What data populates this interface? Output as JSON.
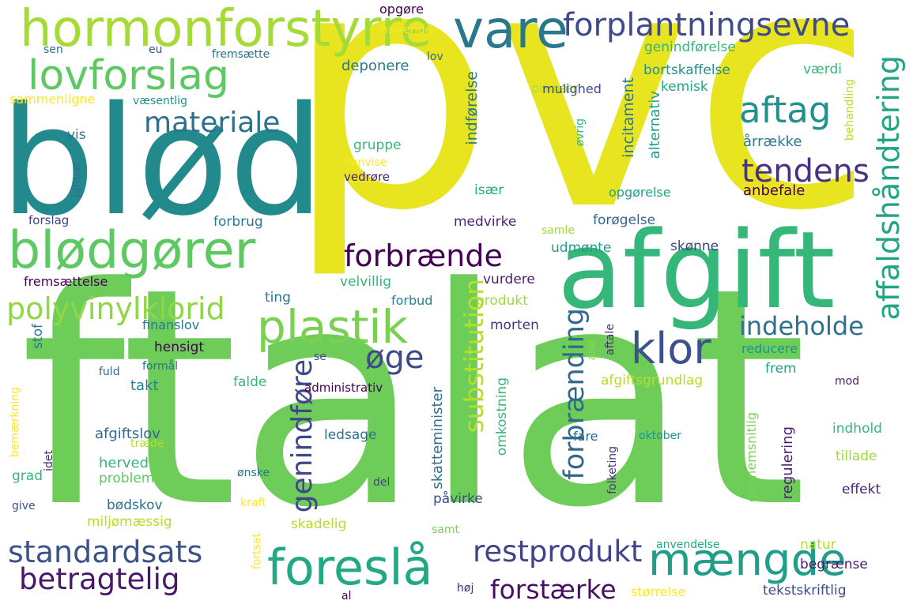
{
  "palette": {
    "yellow": "#e8e41f",
    "lime": "#a0d93e",
    "green": "#62c95e",
    "emerald": "#2db37a",
    "teal": "#24938a",
    "blue": "#2f6f8e",
    "indigo": "#3a528b",
    "purple": "#481f70",
    "dark": "#440154"
  },
  "words": [
    {
      "text": "pvc",
      "color": "#e8e41f"
    },
    {
      "text": "ftalat",
      "color": "#6ecd59"
    },
    {
      "text": "blød",
      "color": "#22898c"
    },
    {
      "text": "afgift",
      "color": "#35b779"
    },
    {
      "text": "hormonforstyrre",
      "color": "#a5db36"
    },
    {
      "text": "vare",
      "color": "#2a788e"
    },
    {
      "text": "forplantningsevne",
      "color": "#3e4a89"
    },
    {
      "text": "lovforslag",
      "color": "#5ec962"
    },
    {
      "text": "blødgører",
      "color": "#5ec962"
    },
    {
      "text": "materiale",
      "color": "#2c728e"
    },
    {
      "text": "aftag",
      "color": "#21918c"
    },
    {
      "text": "affaldshåndtering",
      "color": "#21a585"
    },
    {
      "text": "tendens",
      "color": "#46327e"
    },
    {
      "text": "forbrænde",
      "color": "#440154"
    },
    {
      "text": "polyvinylklorid",
      "color": "#8fd744"
    },
    {
      "text": "plastik",
      "color": "#7ad151"
    },
    {
      "text": "klor",
      "color": "#3b528b"
    },
    {
      "text": "indeholde",
      "color": "#2c728e"
    },
    {
      "text": "øge",
      "color": "#3e4a89"
    },
    {
      "text": "genindføre",
      "color": "#404688"
    },
    {
      "text": "substitution",
      "color": "#b5de2b"
    },
    {
      "text": "forbrænding",
      "color": "#31688e"
    },
    {
      "text": "standardsats",
      "color": "#3b528b"
    },
    {
      "text": "betragtelig",
      "color": "#48186a"
    },
    {
      "text": "foreslå",
      "color": "#22a884"
    },
    {
      "text": "mængde",
      "color": "#1f9e89"
    },
    {
      "text": "restprodukt",
      "color": "#414487"
    },
    {
      "text": "forstærke",
      "color": "#471063"
    },
    {
      "text": "sammenligne",
      "color": "#fde725"
    },
    {
      "text": "væsentlig",
      "color": "#21918c"
    },
    {
      "text": "sen",
      "color": "#2c728e"
    },
    {
      "text": "eu",
      "color": "#3b528b"
    },
    {
      "text": "fremsætte",
      "color": "#2c728e"
    },
    {
      "text": "lov",
      "color": "#31688e"
    },
    {
      "text": "opgøre",
      "color": "#440154"
    },
    {
      "text": "anvende",
      "color": "#fde725"
    },
    {
      "text": "deponere",
      "color": "#2a788e"
    },
    {
      "text": "genindførelse",
      "color": "#35b779"
    },
    {
      "text": "bortskaffelse",
      "color": "#21918c"
    },
    {
      "text": "værdi",
      "color": "#35b779"
    },
    {
      "text": "kemisk",
      "color": "#20a486"
    },
    {
      "text": "primær",
      "color": "#b5de2b"
    },
    {
      "text": "mulighed",
      "color": "#3e4a89"
    },
    {
      "text": "indførelse",
      "color": "#2a788e"
    },
    {
      "text": "incitament",
      "color": "#2a788e"
    },
    {
      "text": "alternativ",
      "color": "#1f9e89"
    },
    {
      "text": "øvrig",
      "color": "#35b779"
    },
    {
      "text": "behandling",
      "color": "#b5de2b"
    },
    {
      "text": "årrække",
      "color": "#2a788e"
    },
    {
      "text": "vis",
      "color": "#2a788e"
    },
    {
      "text": "gruppe",
      "color": "#35b779"
    },
    {
      "text": "henvise",
      "color": "#fde725"
    },
    {
      "text": "vedrøre",
      "color": "#481f70"
    },
    {
      "text": "januar",
      "color": "#2c728e"
    },
    {
      "text": "forslag",
      "color": "#414487"
    },
    {
      "text": "forbrug",
      "color": "#2a788e"
    },
    {
      "text": "især",
      "color": "#22a884"
    },
    {
      "text": "opgørelse",
      "color": "#20a486"
    },
    {
      "text": "anbefale",
      "color": "#440154"
    },
    {
      "text": "forøgelse",
      "color": "#31688e"
    },
    {
      "text": "medvirke",
      "color": "#482878"
    },
    {
      "text": "samle",
      "color": "#a0da39"
    },
    {
      "text": "udmønte",
      "color": "#1f9e89"
    },
    {
      "text": "skønne",
      "color": "#414487"
    },
    {
      "text": "fremsættelse",
      "color": "#440154"
    },
    {
      "text": "ting",
      "color": "#2a788e"
    },
    {
      "text": "velvillig",
      "color": "#35b779"
    },
    {
      "text": "vurdere",
      "color": "#481f70"
    },
    {
      "text": "produkt",
      "color": "#a0da39"
    },
    {
      "text": "forbud",
      "color": "#26828e"
    },
    {
      "text": "finanslov",
      "color": "#2a788e"
    },
    {
      "text": "morten",
      "color": "#46327e"
    },
    {
      "text": "reducere",
      "color": "#21918c"
    },
    {
      "text": "hensigt",
      "color": "#440154"
    },
    {
      "text": "stof",
      "color": "#2a788e"
    },
    {
      "text": "se",
      "color": "#3e4a89"
    },
    {
      "text": "and",
      "color": "#8fd744"
    },
    {
      "text": "aftale",
      "color": "#482878"
    },
    {
      "text": "frem",
      "color": "#20a486"
    },
    {
      "text": "formål",
      "color": "#2c728e"
    },
    {
      "text": "fuld",
      "color": "#31688e"
    },
    {
      "text": "takt",
      "color": "#26828e"
    },
    {
      "text": "falde",
      "color": "#35b779"
    },
    {
      "text": "administrativ",
      "color": "#440154"
    },
    {
      "text": "afgiftsgrundlag",
      "color": "#b5de2b"
    },
    {
      "text": "mod",
      "color": "#481f70"
    },
    {
      "text": "bemærkning",
      "color": "#fde725"
    },
    {
      "text": "idet",
      "color": "#482878"
    },
    {
      "text": "afgiftslov",
      "color": "#31688e"
    },
    {
      "text": "ledsage",
      "color": "#2c728e"
    },
    {
      "text": "træde",
      "color": "#b5de2b"
    },
    {
      "text": "herved",
      "color": "#35b779"
    },
    {
      "text": "skatteminister",
      "color": "#2c728e"
    },
    {
      "text": "omkostning",
      "color": "#35b779"
    },
    {
      "text": "fare",
      "color": "#31688e"
    },
    {
      "text": "oktober",
      "color": "#21918c"
    },
    {
      "text": "gennemsnitlig",
      "color": "#7ad151"
    },
    {
      "text": "indhold",
      "color": "#35b779"
    },
    {
      "text": "tillade",
      "color": "#a0da39"
    },
    {
      "text": "grad",
      "color": "#35b779"
    },
    {
      "text": "problem",
      "color": "#5ec962"
    },
    {
      "text": "ønske",
      "color": "#2a788e"
    },
    {
      "text": "del",
      "color": "#414487"
    },
    {
      "text": "regulering",
      "color": "#481f70"
    },
    {
      "text": "effekt",
      "color": "#482878"
    },
    {
      "text": "give",
      "color": "#3b528b"
    },
    {
      "text": "bødskov",
      "color": "#2c728e"
    },
    {
      "text": "kraft",
      "color": "#fde725"
    },
    {
      "text": "påvirke",
      "color": "#3e4a89"
    },
    {
      "text": "folketing",
      "color": "#46327e"
    },
    {
      "text": "miljømæssig",
      "color": "#b5de2b"
    },
    {
      "text": "samt",
      "color": "#7ad151"
    },
    {
      "text": "skadelig",
      "color": "#b5de2b"
    },
    {
      "text": "anvendelse",
      "color": "#22a884"
    },
    {
      "text": "natur",
      "color": "#b5de2b"
    },
    {
      "text": "begrænse",
      "color": "#481f70"
    },
    {
      "text": "fortsat",
      "color": "#fde725"
    },
    {
      "text": "al",
      "color": "#440154"
    },
    {
      "text": "høj",
      "color": "#482878"
    },
    {
      "text": "størrelse",
      "color": "#fde725"
    },
    {
      "text": "tekstskriftlig",
      "color": "#3e4a89"
    }
  ]
}
